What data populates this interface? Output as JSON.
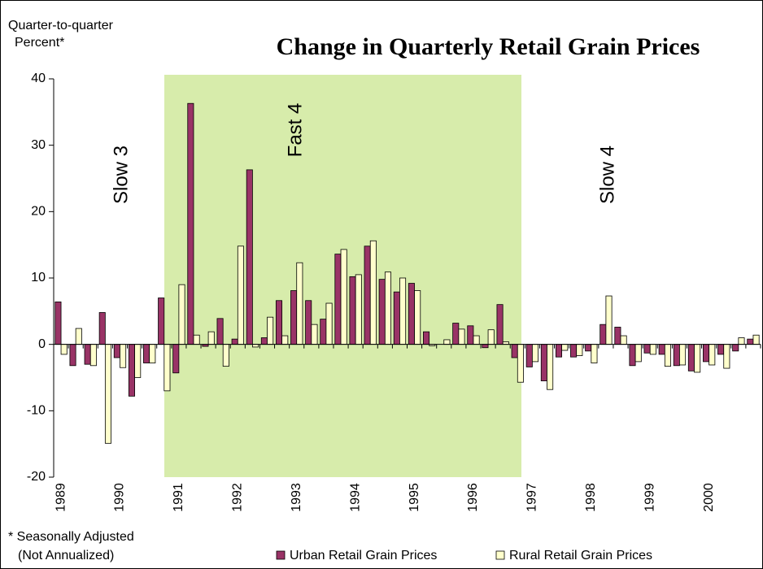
{
  "chart_data": {
    "type": "bar",
    "title": "Change in Quarterly Retail Grain Prices",
    "y_label": [
      "Quarter-to-quarter",
      "Percent*"
    ],
    "footnote": [
      "* Seasonally Adjusted",
      "(Not Annualized)"
    ],
    "annotations": [
      "Slow 3",
      "Fast 4",
      "Slow 4"
    ],
    "categories": [
      "1989",
      null,
      null,
      null,
      "1990",
      null,
      null,
      null,
      "1991",
      null,
      null,
      null,
      "1992",
      null,
      null,
      null,
      "1993",
      null,
      null,
      null,
      "1994",
      null,
      null,
      null,
      "1995",
      null,
      null,
      null,
      "1996",
      null,
      null,
      null,
      "1997",
      null,
      null,
      null,
      "1998",
      null,
      null,
      null,
      "1999",
      null,
      null,
      null,
      "2000",
      null,
      null,
      null
    ],
    "series": [
      {
        "name": "Urban Retail Grain Prices",
        "color": "#993366",
        "values": [
          6.4,
          -3.2,
          -3,
          4.8,
          -2,
          -7.8,
          -2.8,
          7,
          -4.3,
          36.3,
          -0.3,
          3.9,
          0.8,
          26.3,
          1,
          6.6,
          8.1,
          6.6,
          3.8,
          13.6,
          10.2,
          14.8,
          9.8,
          7.9,
          9.2,
          1.9,
          0,
          3.2,
          2.8,
          -0.5,
          6,
          -2,
          -3.4,
          -5.5,
          -1.9,
          -1.9,
          -1,
          3,
          2.6,
          -3.2,
          -1.3,
          -1.5,
          -3.2,
          -4,
          -2.6,
          -1.5,
          -1,
          0.8
        ]
      },
      {
        "name": "Rural Retail Grain Prices",
        "color": "#ffffcc",
        "values": [
          -1.5,
          2.4,
          -3.2,
          -14.9,
          -3.5,
          -5,
          -2.8,
          -7,
          9,
          1.4,
          1.9,
          -3.3,
          14.8,
          -0.4,
          4.1,
          1.3,
          12.3,
          3,
          6.2,
          14.3,
          10.5,
          15.6,
          10.9,
          10,
          8.1,
          -0.2,
          0.7,
          2.3,
          1.3,
          2.2,
          0.4,
          -5.7,
          -2.6,
          -6.8,
          -0.9,
          -1.7,
          -2.8,
          7.3,
          1.3,
          -2.6,
          -1.5,
          -3.3,
          -3.1,
          -4.2,
          -3.1,
          -3.6,
          1,
          1.4
        ]
      }
    ],
    "ylim": [
      -20,
      40
    ],
    "yticks": [
      -20,
      -10,
      0,
      10,
      20,
      30,
      40
    ]
  }
}
